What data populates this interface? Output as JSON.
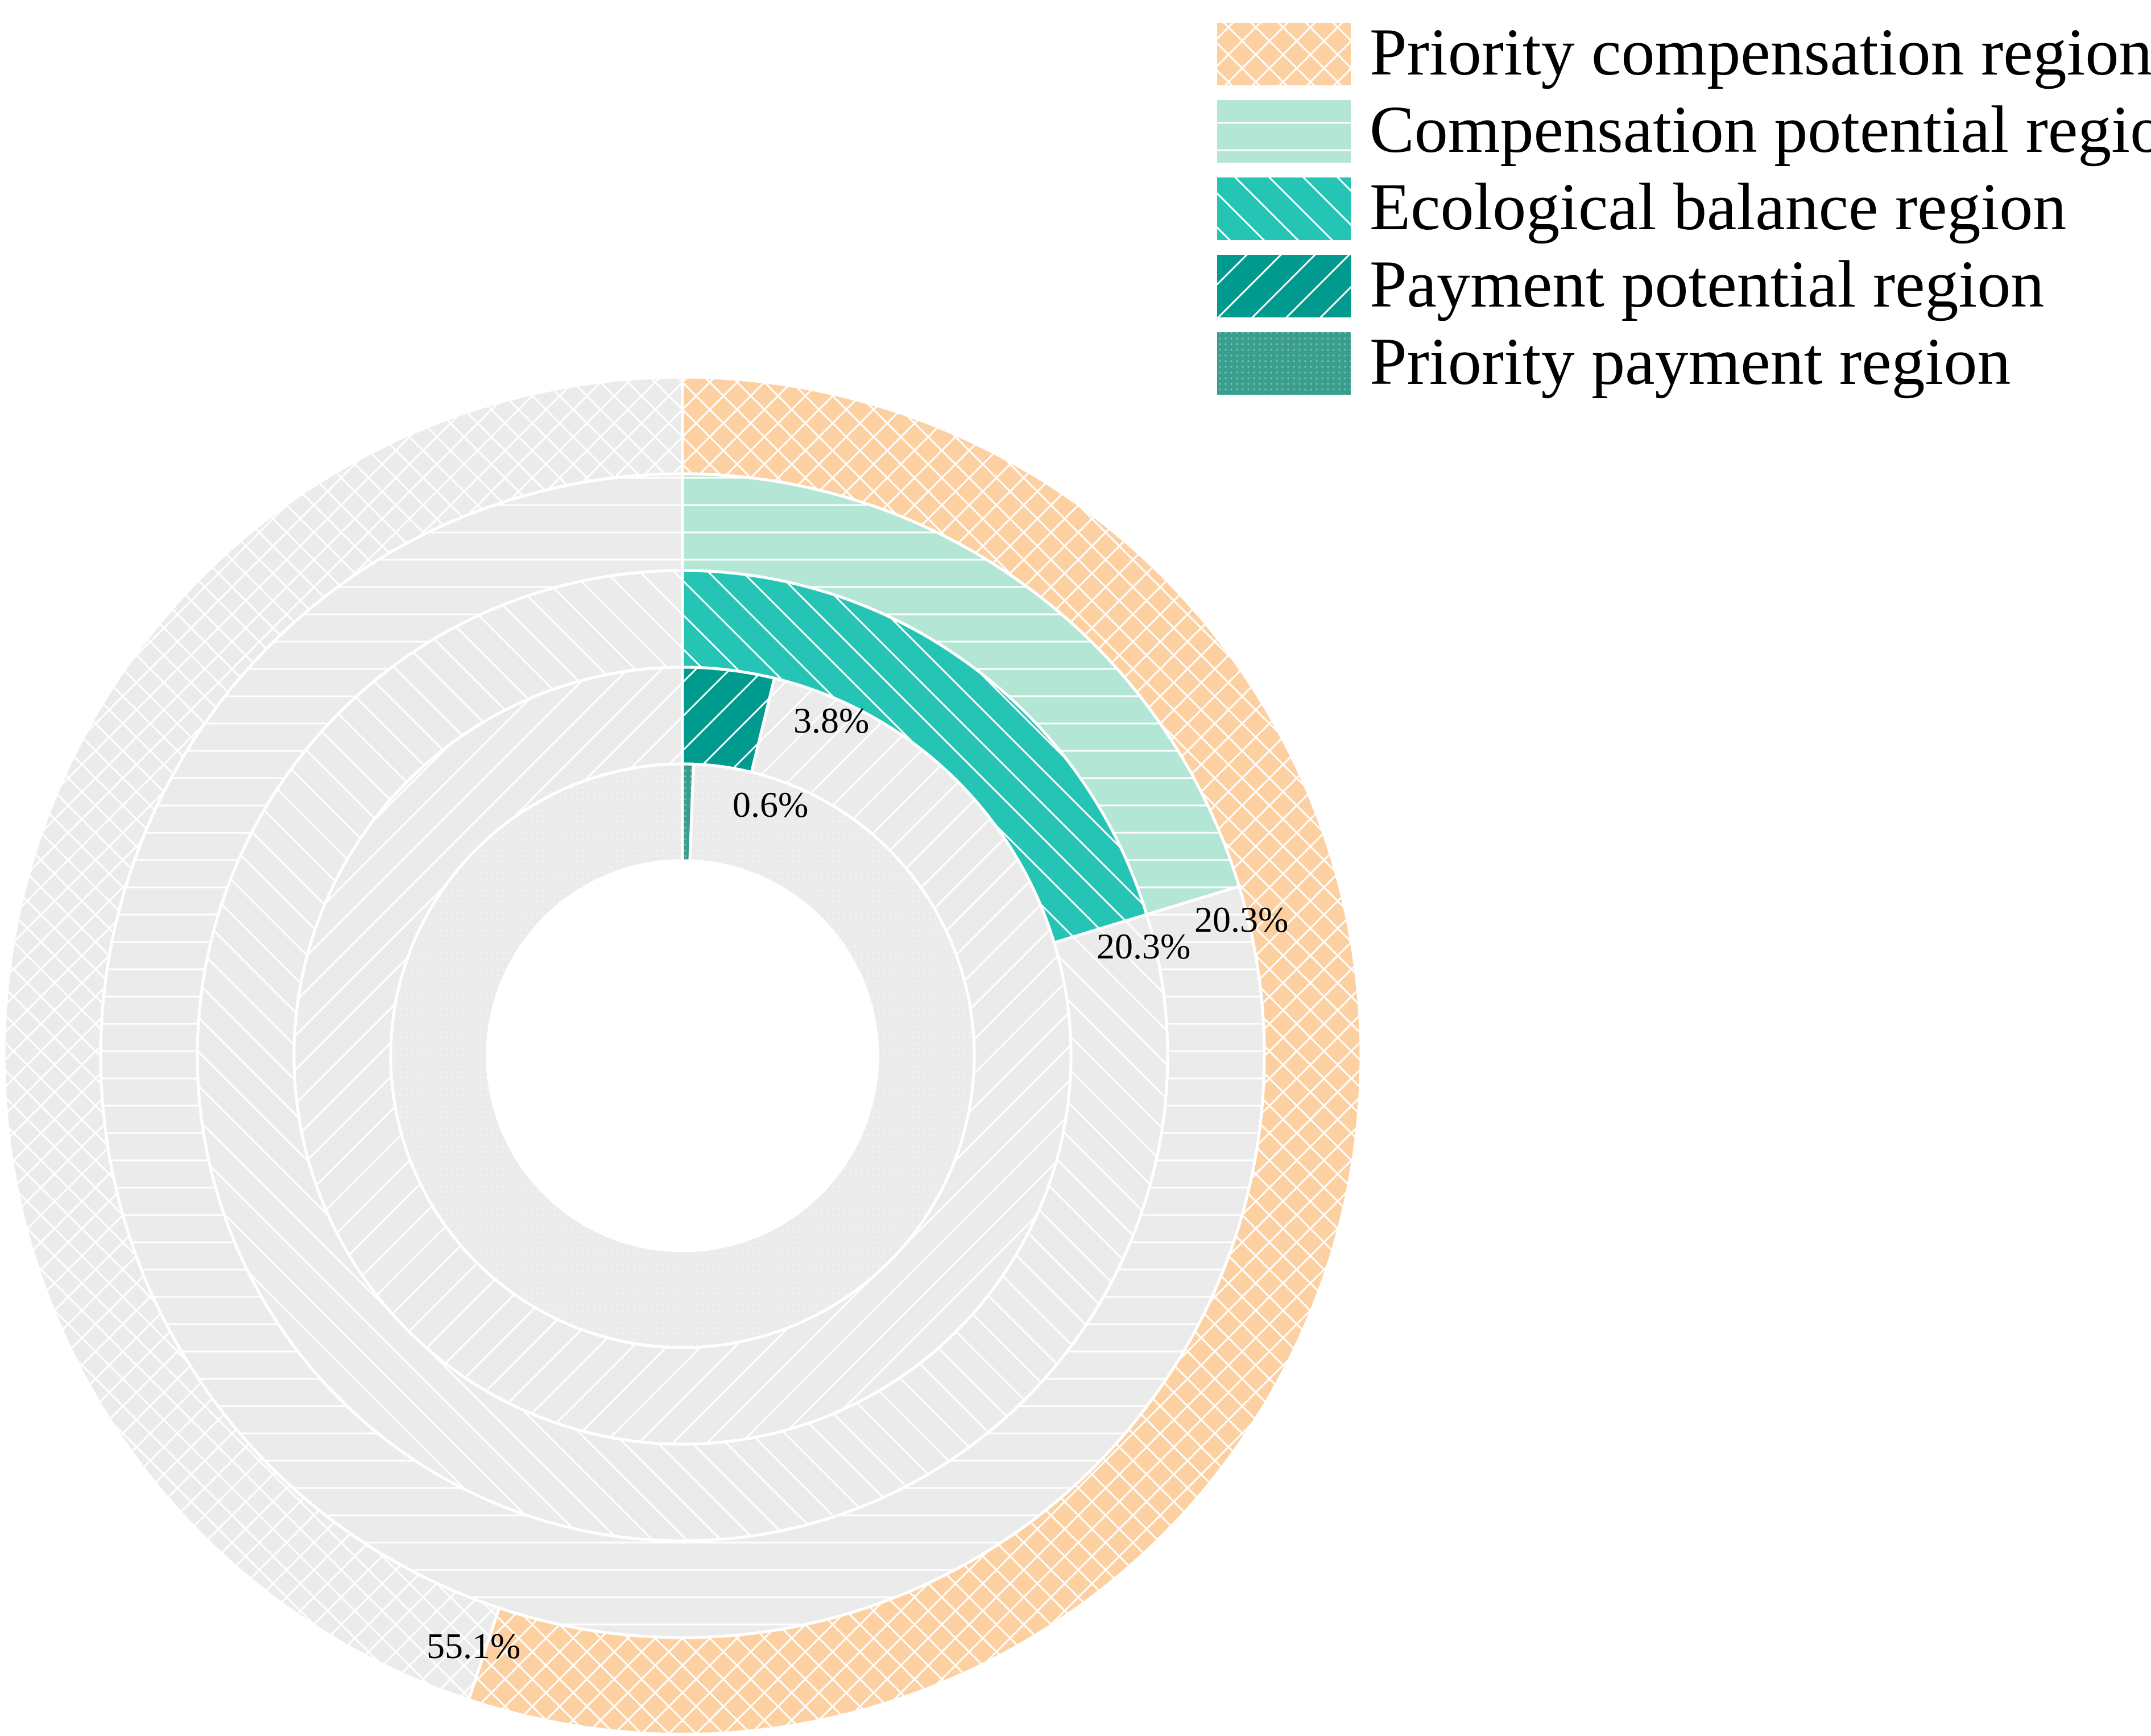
{
  "chart_data": {
    "type": "nested-donut",
    "title": "",
    "start": "12 o'clock",
    "direction": "clockwise",
    "remainder_color": "#ebebeb",
    "series": [
      {
        "name": "Priority compensation region",
        "value": 55.1,
        "label": "55.1%",
        "color": "#fdd0a2",
        "pattern": "crosshatch",
        "ring": "outermost"
      },
      {
        "name": "Compensation potential region",
        "value": 20.3,
        "label": "20.3%",
        "color": "#b4e6d6",
        "pattern": "horizontal",
        "ring": "second"
      },
      {
        "name": "Ecological balance region",
        "value": 20.3,
        "label": "20.3%",
        "color": "#26c4b4",
        "pattern": "backslash",
        "ring": "third"
      },
      {
        "name": "Payment potential region",
        "value": 3.8,
        "label": "3.8%",
        "color": "#009b8e",
        "pattern": "slash",
        "ring": "fourth"
      },
      {
        "name": "Priority payment region",
        "value": 0.6,
        "label": "0.6%",
        "color": "#3a9e8e",
        "pattern": "dots",
        "ring": "innermost"
      }
    ],
    "legend": {
      "placement": "top-right",
      "entries": [
        "Priority compensation region",
        "Compensation potential region",
        "Ecological balance region",
        "Payment potential region",
        "Priority payment region"
      ]
    }
  }
}
